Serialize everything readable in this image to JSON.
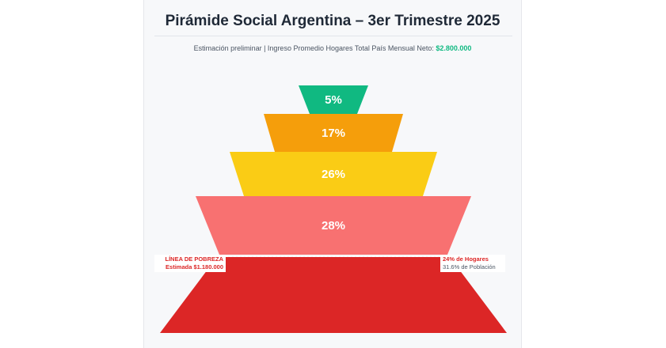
{
  "header": {
    "title": "Pirámide Social Argentina – 3er Trimestre 2025",
    "subtitle_prefix": "Estimación preliminar | Ingreso Promedio Hogares Total País Mensual Neto: ",
    "subtitle_amount": "$2.800.000"
  },
  "poverty_line": {
    "label_line1": "LÍNEA DE POBREZA",
    "label_line2": "Estimada $1.180.000",
    "right_line1": "24% de Hogares",
    "right_line2": "31.6% de Población"
  },
  "chart_data": {
    "type": "funnel",
    "title": "Pirámide Social Argentina – 3er Trimestre 2025",
    "tiers": [
      {
        "value": 5,
        "label": "5%",
        "color": "#10b981"
      },
      {
        "value": 17,
        "label": "17%",
        "color": "#f59e0b"
      },
      {
        "value": 26,
        "label": "26%",
        "color": "#facc15"
      },
      {
        "value": 28,
        "label": "28%",
        "color": "#f87171"
      },
      {
        "value": 24,
        "label": "",
        "color": "#dc2626"
      }
    ]
  }
}
